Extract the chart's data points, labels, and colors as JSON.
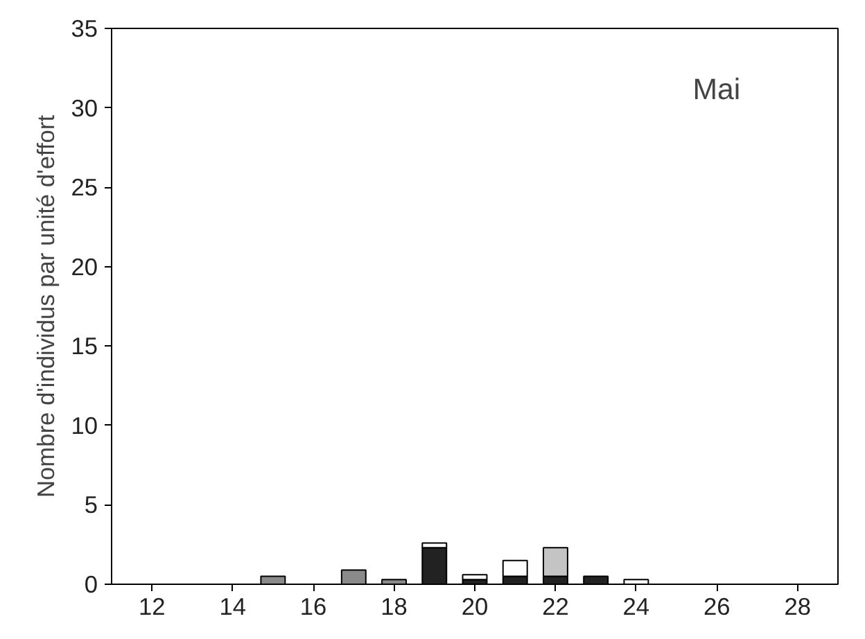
{
  "chart_data": {
    "type": "bar",
    "stacked": true,
    "ylabel": "Nombre d'individus par unité d'effort",
    "annotations": [
      "Mai"
    ],
    "x": [
      15,
      17,
      18,
      19,
      20,
      21,
      22,
      23,
      24
    ],
    "series": [
      {
        "color": "#222222",
        "values": [
          0,
          0,
          0,
          2.3,
          0.3,
          0.5,
          0.5,
          0.5,
          0
        ]
      },
      {
        "color": "#ffffff",
        "values": [
          0,
          0,
          0,
          0.3,
          0.3,
          1.0,
          0,
          0,
          0.3
        ]
      },
      {
        "color": "#8a8a8a",
        "values": [
          0.5,
          0.9,
          0.3,
          0,
          0,
          0,
          0,
          0,
          0
        ]
      },
      {
        "color": "#c4c4c4",
        "values": [
          0,
          0,
          0,
          0,
          0,
          0,
          1.8,
          0,
          0
        ]
      }
    ],
    "xlim": [
      11,
      29
    ],
    "xticks": [
      12,
      14,
      16,
      18,
      20,
      22,
      24,
      26,
      28
    ],
    "ylim": [
      0,
      35
    ],
    "yticks": [
      0,
      5,
      10,
      15,
      20,
      25,
      30,
      35
    ],
    "grid": false
  }
}
